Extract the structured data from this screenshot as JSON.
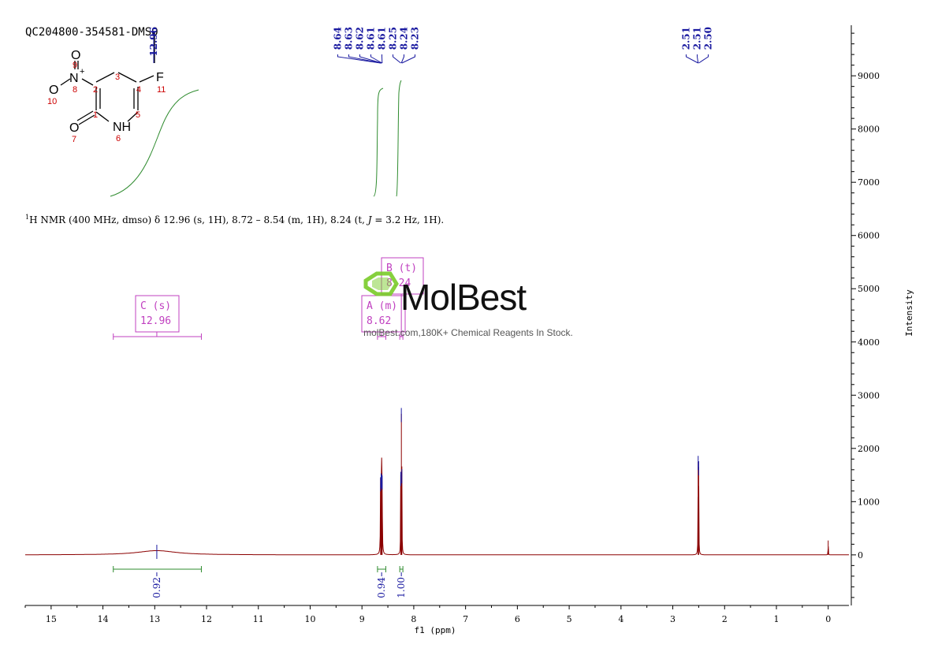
{
  "sample_id": "QC204800-354581-DMSO",
  "nmr_summary": {
    "prefix": "H NMR (400 MHz, dmso) δ 12.96 (s, 1H), 8.72 – 8.54 (m, 1H), 8.24 (t, ",
    "j": "J",
    "suffix": " = 3.2 Hz, 1H).",
    "sup": "1"
  },
  "watermark": {
    "brand": "MolBest",
    "tagline": "molBest.com,180K+ Chemical Reagents In Stock."
  },
  "structure": {
    "atoms": [
      {
        "text": "O"
      },
      {
        "text": "N"
      },
      {
        "text": "+"
      },
      {
        "text": "O"
      },
      {
        "text": "F"
      },
      {
        "text": "O"
      },
      {
        "text": "NH"
      }
    ],
    "numbers": [
      "9",
      "8",
      "3",
      "2",
      "4",
      "11",
      "10",
      "1",
      "5",
      "7",
      "6"
    ]
  },
  "colors": {
    "spectrum": "#8b0000",
    "peak_label": "#1a1aa0",
    "integral": "#2e8b2e",
    "multiplet": "#c040c0",
    "axis": "#000000",
    "atom_number": "#cc0000",
    "watermark_green": "#7acc29"
  },
  "chart_data": {
    "type": "line",
    "xlabel": "f1 (ppm)",
    "ylabel": "Intensity",
    "xlim": [
      15.5,
      -0.4
    ],
    "ylim": [
      -950,
      9950
    ],
    "x_ticks": [
      "15",
      "14",
      "13",
      "12",
      "11",
      "10",
      "9",
      "8",
      "7",
      "6",
      "5",
      "4",
      "3",
      "2",
      "1",
      "0"
    ],
    "y_ticks": [
      "9000",
      "8000",
      "7000",
      "6000",
      "5000",
      "4000",
      "3000",
      "2000",
      "1000",
      "0"
    ],
    "peaks": [
      {
        "ppm": 12.96,
        "height": 80,
        "width": 0.45
      },
      {
        "ppm": 8.64,
        "height": 1350,
        "width": 0.004
      },
      {
        "ppm": 8.63,
        "height": 1420,
        "width": 0.004
      },
      {
        "ppm": 8.62,
        "height": 1400,
        "width": 0.004
      },
      {
        "ppm": 8.61,
        "height": 1380,
        "width": 0.004
      },
      {
        "ppm": 8.25,
        "height": 1450,
        "width": 0.003
      },
      {
        "ppm": 8.24,
        "height": 2650,
        "width": 0.003
      },
      {
        "ppm": 8.23,
        "height": 1500,
        "width": 0.003
      },
      {
        "ppm": 2.51,
        "height": 1750,
        "width": 0.003
      },
      {
        "ppm": 2.5,
        "height": 1650,
        "width": 0.003
      },
      {
        "ppm": 0.0,
        "height": 270,
        "width": 0.003
      }
    ],
    "peak_labels": [
      {
        "group": "g1",
        "items": [
          "12.96"
        ]
      },
      {
        "group": "g2",
        "items": [
          "8.64",
          "8.63",
          "8.62",
          "8.61",
          "8.61",
          "8.25",
          "8.24",
          "8.23"
        ]
      },
      {
        "group": "g3",
        "items": [
          "2.51",
          "2.51",
          "2.50"
        ]
      }
    ],
    "integrals": [
      {
        "from": 13.8,
        "to": 12.1,
        "value": "0.92",
        "center": 12.96
      },
      {
        "from": 8.7,
        "to": 8.54,
        "value": "0.94",
        "center": 8.62
      },
      {
        "from": 8.27,
        "to": 8.21,
        "value": "1.00",
        "center": 8.24
      }
    ],
    "multiplets": [
      {
        "label": "C (s)",
        "shift": "12.96",
        "center": 12.96,
        "from": 13.8,
        "to": 12.1
      },
      {
        "label": "A (m)",
        "shift": "8.62",
        "center": 8.62,
        "from": 8.7,
        "to": 8.54
      },
      {
        "label": "B (t)",
        "shift": "8.24",
        "center": 8.24,
        "from": 8.27,
        "to": 8.21
      }
    ]
  }
}
